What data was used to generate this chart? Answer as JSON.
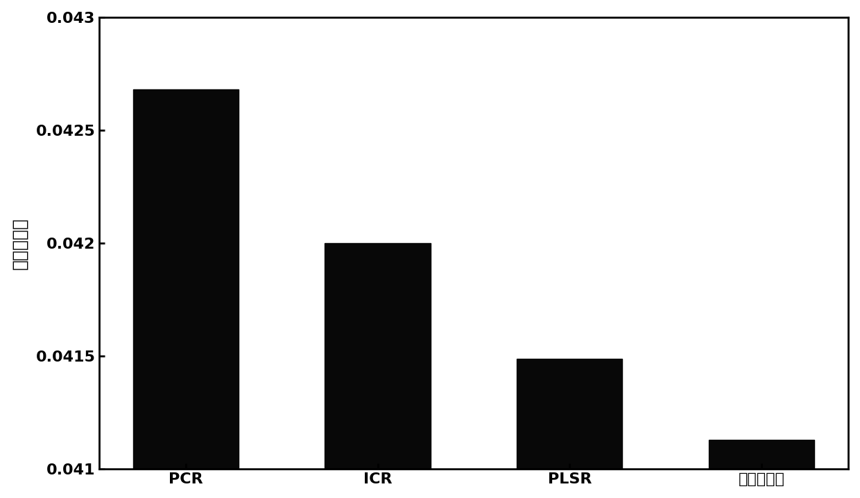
{
  "categories": [
    "PCR",
    "ICR",
    "PLSR",
    "本发明方法"
  ],
  "values": [
    0.04268,
    0.042,
    0.04149,
    0.04113
  ],
  "bar_color": "#080808",
  "ylabel": "均方根误差",
  "ylim": [
    0.041,
    0.043
  ],
  "yticks": [
    0.041,
    0.0415,
    0.042,
    0.0425,
    0.043
  ],
  "ytick_labels": [
    "0.041",
    "0.0415",
    "0.042",
    "0.0425",
    "0.043"
  ],
  "background_color": "#ffffff",
  "bar_width": 0.55,
  "tick_fontsize": 16,
  "label_fontsize": 16,
  "ylabel_fontsize": 18
}
